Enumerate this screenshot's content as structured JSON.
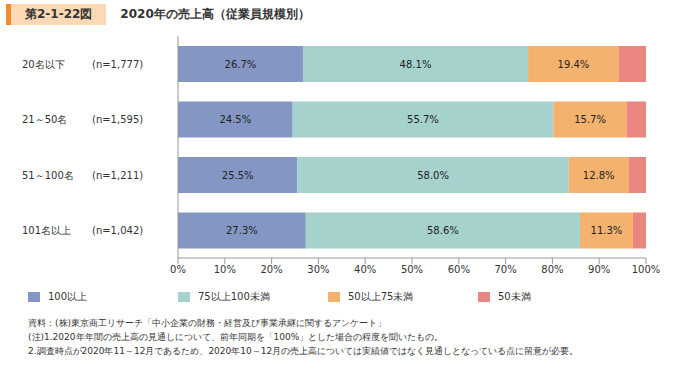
{
  "figure_number": "第2-1-22図",
  "chart_data": {
    "type": "bar",
    "orientation": "horizontal",
    "stacked": true,
    "title": "2020年の売上高（従業員規模別）",
    "categories": [
      "20名以下",
      "21～50名",
      "51～100名",
      "101名以上"
    ],
    "category_notes": [
      "(n=1,777)",
      "(n=1,595)",
      "(n=1,211)",
      "(n=1,042)"
    ],
    "series": [
      {
        "name": "100以上",
        "color": "#8497c4",
        "values": [
          26.7,
          24.5,
          25.5,
          27.3
        ],
        "value_labels": [
          "26.7%",
          "24.5%",
          "25.5%",
          "27.3%"
        ]
      },
      {
        "name": "75以上100未満",
        "color": "#a6d2cd",
        "values": [
          48.1,
          55.7,
          58.0,
          58.6
        ],
        "value_labels": [
          "48.1%",
          "55.7%",
          "58.0%",
          "58.6%"
        ]
      },
      {
        "name": "50以上75未満",
        "color": "#f5b26e",
        "values": [
          19.4,
          15.7,
          12.8,
          11.3
        ],
        "value_labels": [
          "19.4%",
          "15.7%",
          "12.8%",
          "11.3%"
        ]
      },
      {
        "name": "50未満",
        "color": "#e9867f",
        "values": [
          5.8,
          4.1,
          3.7,
          2.8
        ],
        "data_labels": false
      }
    ],
    "xlim": [
      0,
      100
    ],
    "xticks": [
      {
        "value": 0,
        "label": "0%"
      },
      {
        "value": 10,
        "label": "10%"
      },
      {
        "value": 20,
        "label": "20%"
      },
      {
        "value": 30,
        "label": "30%"
      },
      {
        "value": 40,
        "label": "40%"
      },
      {
        "value": 50,
        "label": "50%"
      },
      {
        "value": 60,
        "label": "60%"
      },
      {
        "value": 70,
        "label": "70%"
      },
      {
        "value": 80,
        "label": "80%"
      },
      {
        "value": 90,
        "label": "90%"
      },
      {
        "value": 100,
        "label": "100%"
      }
    ],
    "data_labels": true,
    "grid": false,
    "legend": "bottom"
  },
  "source": "資料：(株)東京商工リサーチ「中小企業の財務・経営及び事業承継に関するアンケート」",
  "notes": [
    "(注)1.2020年年間の売上高の見通しについて、前年同期を「100%」とした場合の程度を聞いたもの。",
    "2.調査時点が2020年11～12月であるため、2020年10～12月の売上高については実績値ではなく見通しとなっている点に留意が必要。"
  ]
}
